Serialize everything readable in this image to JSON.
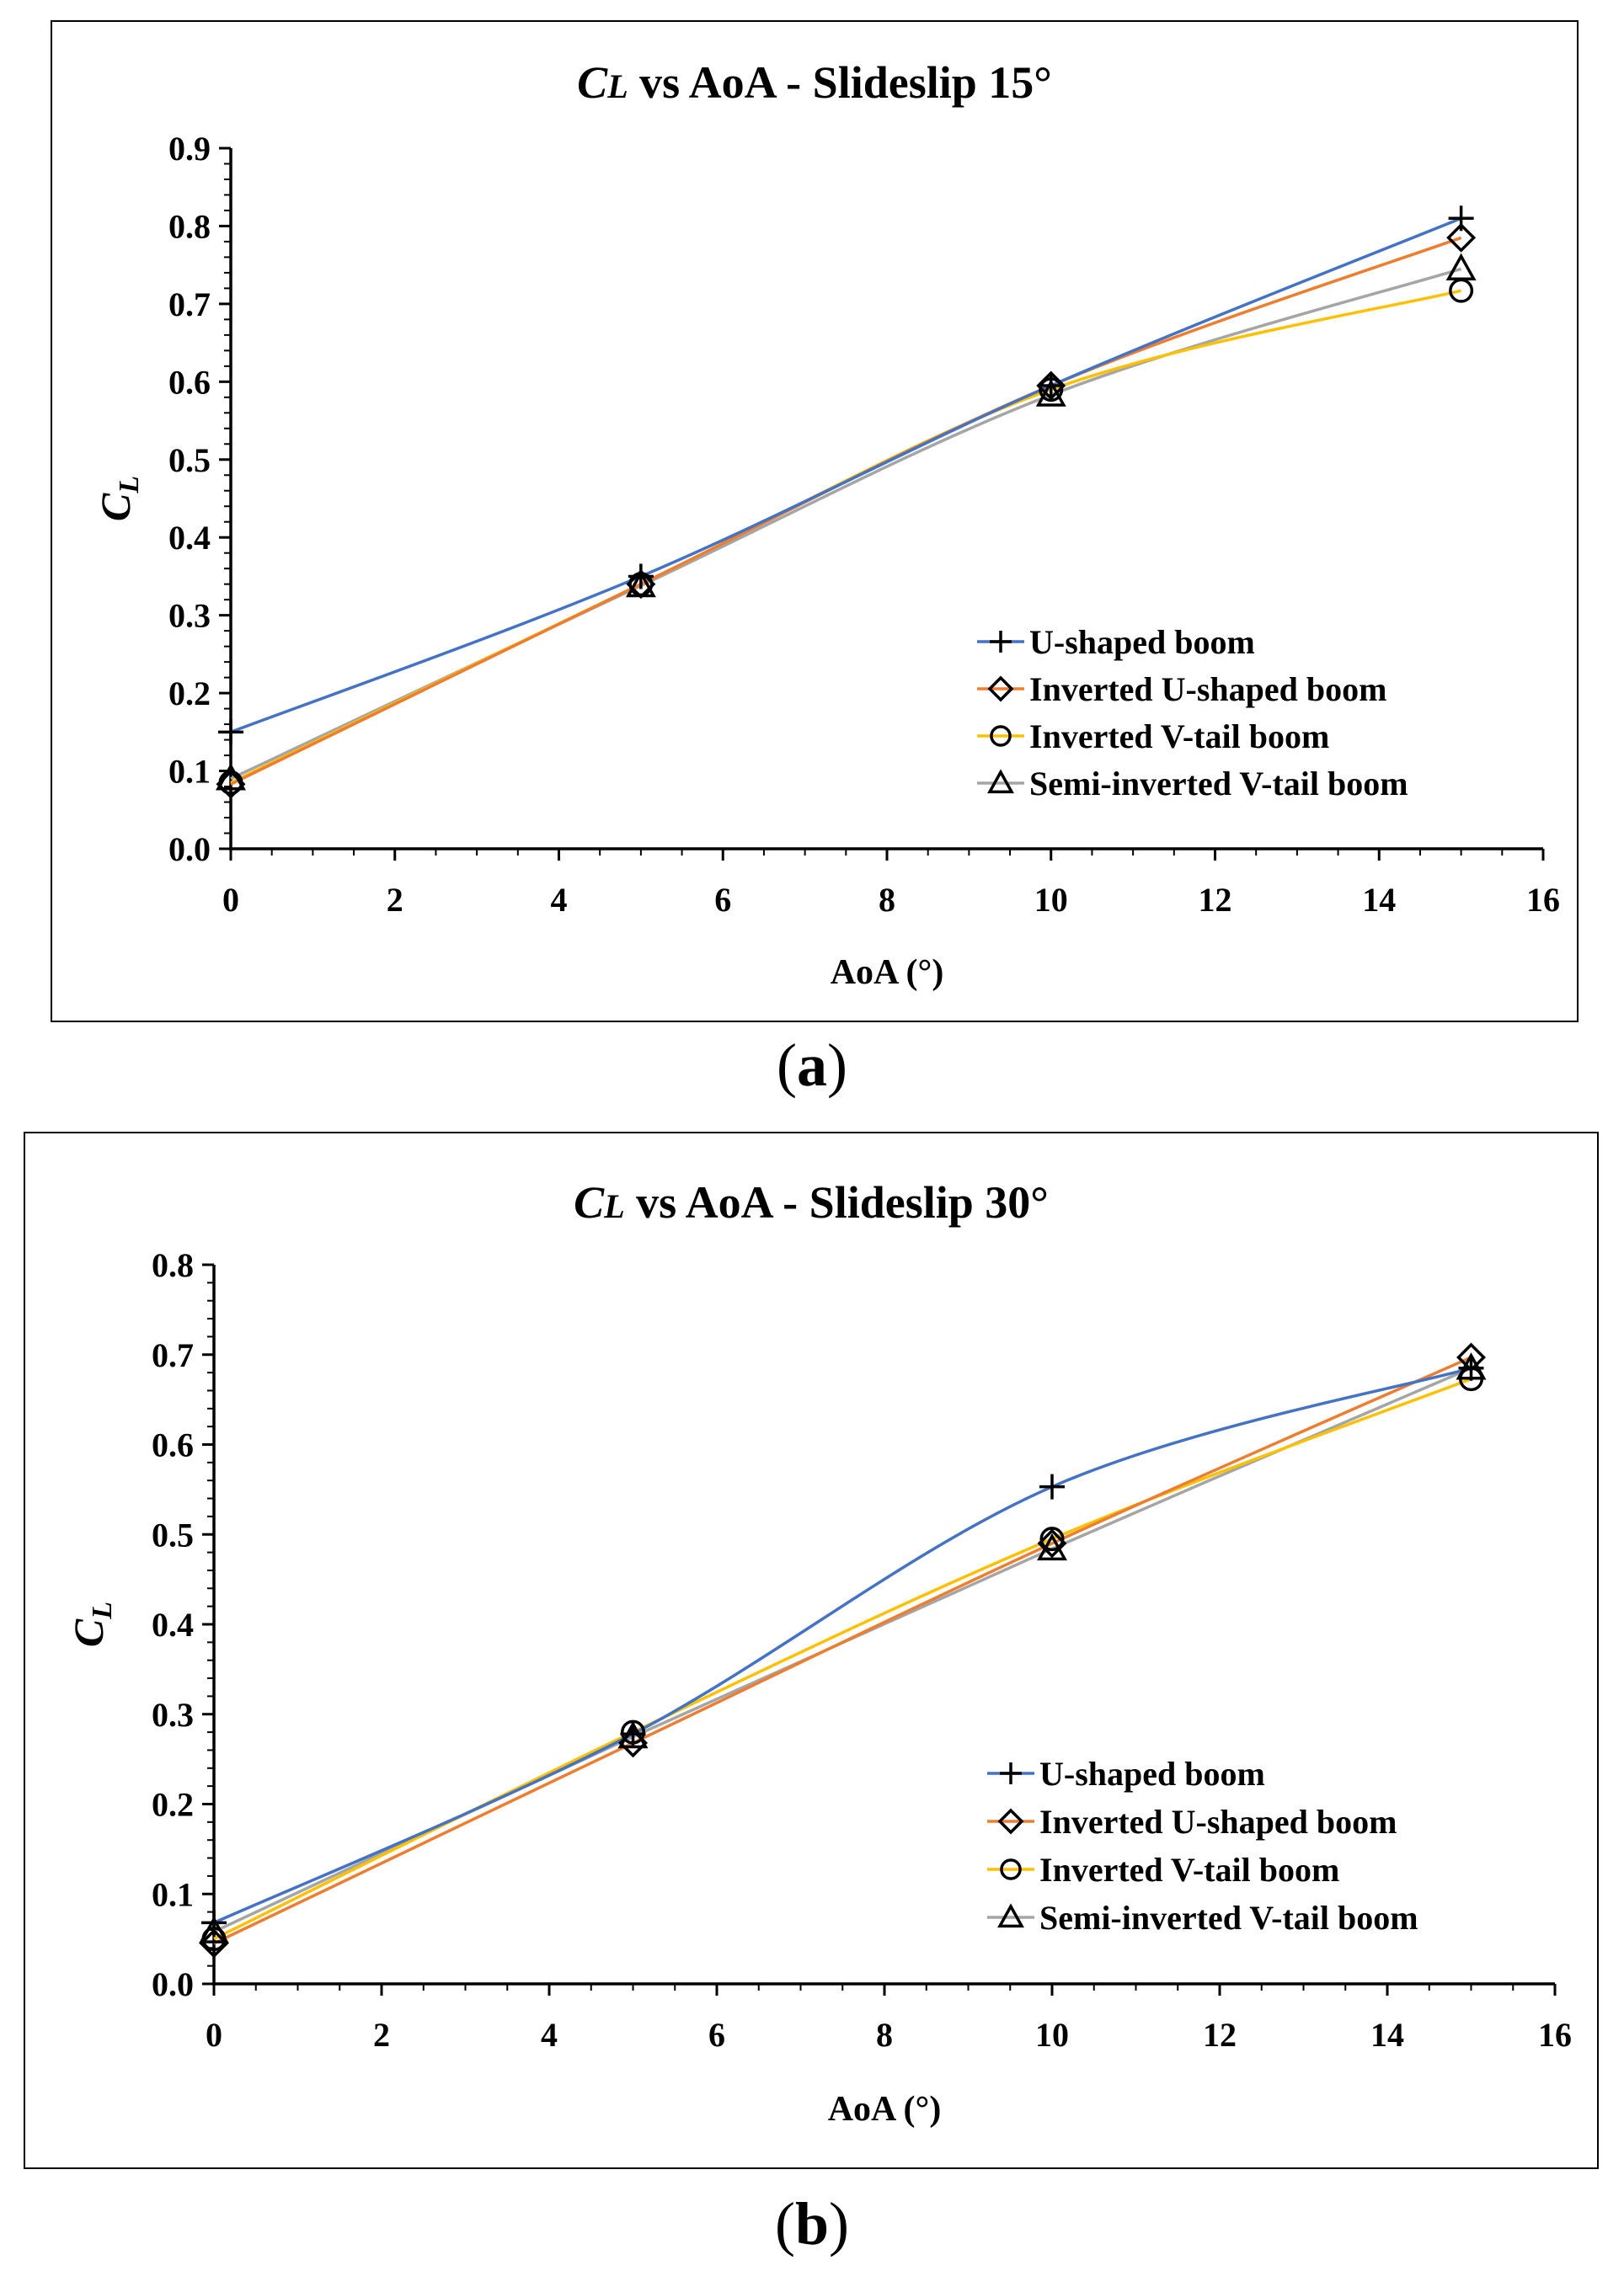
{
  "chart_data": [
    {
      "panel_label": "a",
      "type": "line",
      "title_symbol": "C",
      "title_subscript": "L",
      "title_rest": " vs AoA - Slideslip 15°",
      "xlabel": "AoA (°)",
      "ylabel_symbol": "C",
      "ylabel_subscript": "L",
      "xlim": [
        0,
        16
      ],
      "ylim": [
        0,
        0.9
      ],
      "xticks": [
        0,
        2,
        4,
        6,
        8,
        10,
        12,
        14,
        16
      ],
      "yticks": [
        0.0,
        0.1,
        0.2,
        0.3,
        0.4,
        0.5,
        0.6,
        0.7,
        0.8,
        0.9
      ],
      "ytick_labels": [
        "0.0",
        "0.1",
        "0.2",
        "0.3",
        "0.4",
        "0.5",
        "0.6",
        "0.7",
        "0.8",
        "0.9"
      ],
      "x": [
        0,
        5,
        10,
        15
      ],
      "legend_position": "lower-right",
      "series": [
        {
          "name": "U-shaped boom",
          "marker": "plus",
          "color": "#4472C4",
          "values": [
            0.15,
            0.35,
            0.595,
            0.81
          ]
        },
        {
          "name": "Inverted U-shaped boom",
          "marker": "diamond",
          "color": "#ED7D31",
          "values": [
            0.083,
            0.34,
            0.595,
            0.785
          ]
        },
        {
          "name": "Inverted V-tail boom",
          "marker": "circle",
          "color": "#FFC000",
          "values": [
            0.085,
            0.34,
            0.59,
            0.717
          ]
        },
        {
          "name": "Semi-inverted V-tail boom",
          "marker": "triangle",
          "color": "#A5A5A5",
          "values": [
            0.09,
            0.338,
            0.583,
            0.745
          ]
        }
      ]
    },
    {
      "panel_label": "b",
      "type": "line",
      "title_symbol": "C",
      "title_subscript": "L",
      "title_rest": " vs AoA - Slideslip 30°",
      "xlabel": "AoA (°)",
      "ylabel_symbol": "C",
      "ylabel_subscript": "L",
      "xlim": [
        0,
        16
      ],
      "ylim": [
        0,
        0.8
      ],
      "xticks": [
        0,
        2,
        4,
        6,
        8,
        10,
        12,
        14,
        16
      ],
      "yticks": [
        0.0,
        0.1,
        0.2,
        0.3,
        0.4,
        0.5,
        0.6,
        0.7,
        0.8
      ],
      "ytick_labels": [
        "0.0",
        "0.1",
        "0.2",
        "0.3",
        "0.4",
        "0.5",
        "0.6",
        "0.7",
        "0.8"
      ],
      "x": [
        0,
        5,
        10,
        15
      ],
      "legend_position": "lower-right",
      "series": [
        {
          "name": "U-shaped boom",
          "marker": "plus",
          "color": "#4472C4",
          "values": [
            0.068,
            0.278,
            0.553,
            0.685
          ]
        },
        {
          "name": "Inverted U-shaped boom",
          "marker": "diamond",
          "color": "#ED7D31",
          "values": [
            0.045,
            0.268,
            0.49,
            0.697
          ]
        },
        {
          "name": "Inverted V-tail boom",
          "marker": "circle",
          "color": "#FFC000",
          "values": [
            0.05,
            0.28,
            0.495,
            0.673
          ]
        },
        {
          "name": "Semi-inverted V-tail boom",
          "marker": "triangle",
          "color": "#A5A5A5",
          "values": [
            0.058,
            0.275,
            0.484,
            0.685
          ]
        }
      ]
    }
  ]
}
